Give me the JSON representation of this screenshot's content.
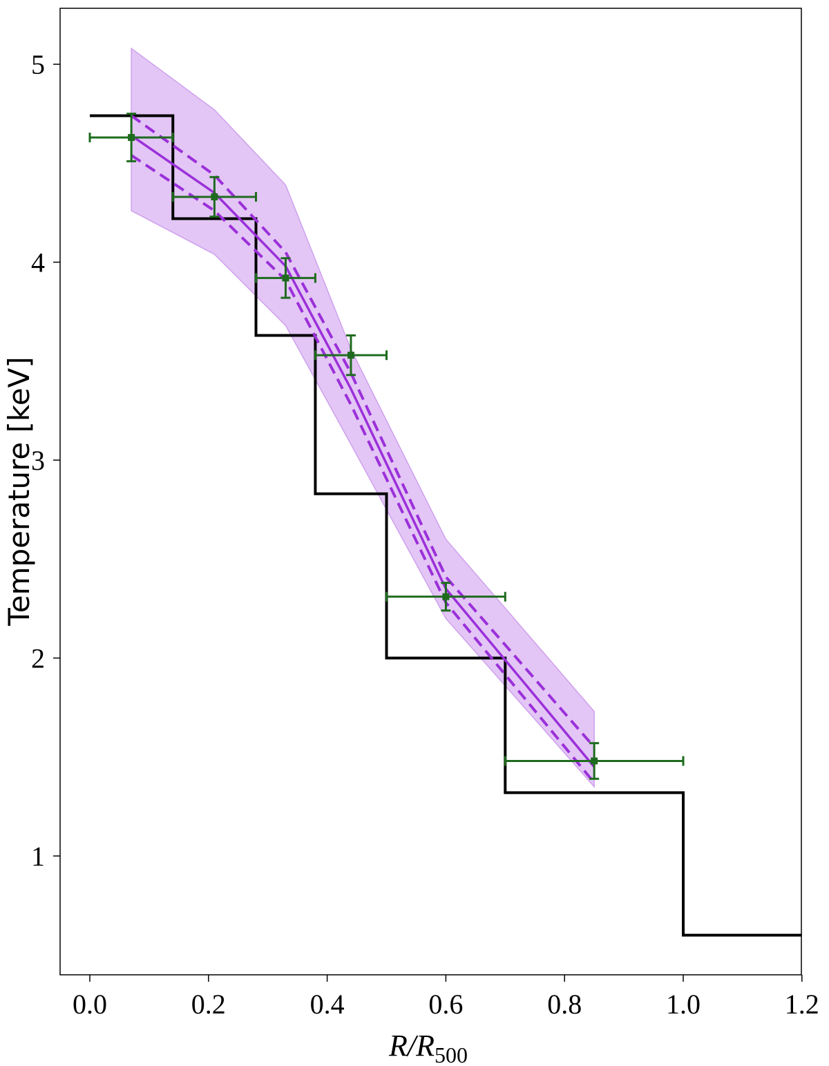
{
  "chart_data": {
    "type": "line",
    "title": "",
    "xlabel": "R/R500",
    "xlabel_main": "R/R",
    "xlabel_sub": "500",
    "ylabel": "Temperature [keV]",
    "xlim": [
      -0.05,
      1.2
    ],
    "ylim": [
      0.4,
      5.3
    ],
    "xticks": [
      0.0,
      0.2,
      0.4,
      0.6,
      0.8,
      1.0,
      1.2
    ],
    "xtick_labels": [
      "0.0",
      "0.2",
      "0.4",
      "0.6",
      "0.8",
      "1.0",
      "1.2"
    ],
    "yticks": [
      1,
      2,
      3,
      4,
      5
    ],
    "ytick_labels": [
      "1",
      "2",
      "3",
      "4",
      "5"
    ],
    "grid": false,
    "colors": {
      "step": "#000000",
      "model": "#9b30d9",
      "band_fill": "#e3c6f5",
      "band_edge": "#cfa0ee",
      "data": "#1e6b1e"
    },
    "step_profile": {
      "edges": [
        0.0,
        0.14,
        0.28,
        0.38,
        0.5,
        0.7,
        1.0,
        1.2
      ],
      "values": [
        4.74,
        4.22,
        3.63,
        2.83,
        2.0,
        1.32,
        0.6
      ]
    },
    "model": {
      "x": [
        0.07,
        0.21,
        0.33,
        0.44,
        0.6,
        0.85
      ],
      "median": [
        4.64,
        4.35,
        3.98,
        3.36,
        2.35,
        1.45
      ],
      "upper": [
        4.74,
        4.44,
        4.05,
        3.44,
        2.41,
        1.55
      ],
      "lower": [
        4.54,
        4.26,
        3.91,
        3.28,
        2.28,
        1.37
      ],
      "band_upper": [
        5.08,
        4.77,
        4.39,
        3.56,
        2.6,
        1.73
      ],
      "band_lower": [
        4.26,
        4.04,
        3.68,
        3.08,
        2.2,
        1.35
      ]
    },
    "data_points": {
      "x": [
        0.07,
        0.21,
        0.33,
        0.44,
        0.6,
        0.85
      ],
      "y": [
        4.63,
        4.33,
        3.92,
        3.53,
        2.31,
        1.48
      ],
      "x_lo": [
        0.0,
        0.14,
        0.28,
        0.38,
        0.5,
        0.7
      ],
      "x_hi": [
        0.14,
        0.28,
        0.38,
        0.5,
        0.7,
        1.0
      ],
      "y_err": [
        0.12,
        0.1,
        0.1,
        0.1,
        0.07,
        0.09
      ]
    }
  }
}
